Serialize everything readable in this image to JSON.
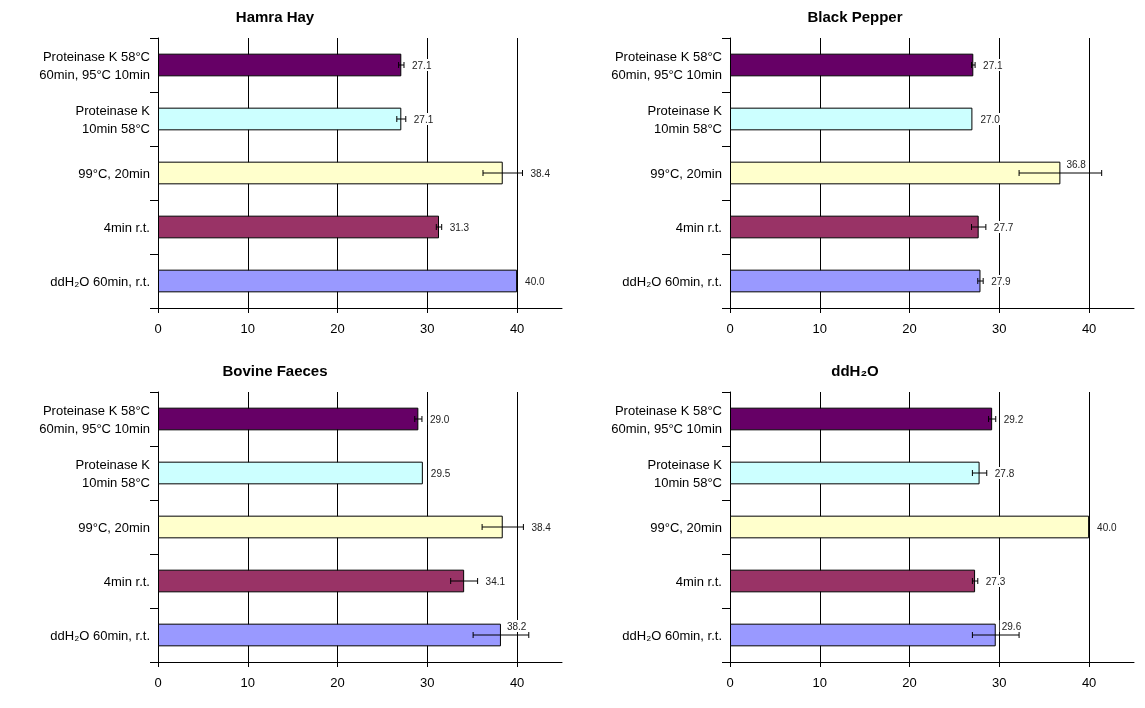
{
  "chart_data": [
    {
      "type": "bar",
      "orientation": "horizontal",
      "title": "Hamra Hay",
      "categories": [
        "Proteinase K 58°C\n60min, 95°C 10min",
        "Proteinase K\n10min 58°C",
        "99°C, 20min",
        "4min r.t.",
        "ddH₂O 60min, r.t."
      ],
      "colors": [
        "#660066",
        "#ccffff",
        "#ffffcc",
        "#993366",
        "#9999ff"
      ],
      "values": [
        27.1,
        27.1,
        38.4,
        31.3,
        40.0
      ],
      "errors": [
        0.3,
        0.5,
        2.2,
        0.3,
        null
      ],
      "value_labels": [
        "27.1",
        "27.1",
        "38.4",
        "31.3",
        "40.0"
      ],
      "xlim": [
        0,
        45
      ],
      "xticks": [
        0,
        10,
        20,
        30,
        40
      ],
      "grid": "x"
    },
    {
      "type": "bar",
      "orientation": "horizontal",
      "title": "Black Pepper",
      "categories": [
        "Proteinase K 58°C\n60min, 95°C 10min",
        "Proteinase K\n10min 58°C",
        "99°C, 20min",
        "4min r.t.",
        "ddH₂O 60min, r.t."
      ],
      "colors": [
        "#660066",
        "#ccffff",
        "#ffffcc",
        "#993366",
        "#9999ff"
      ],
      "values": [
        27.1,
        27.0,
        36.8,
        27.7,
        27.9
      ],
      "errors": [
        0.2,
        null,
        4.6,
        0.8,
        0.3
      ],
      "value_labels": [
        "27.1",
        "27.0",
        "36.8",
        "27.7",
        "27.9"
      ],
      "xlim": [
        0,
        45
      ],
      "xticks": [
        0,
        10,
        20,
        30,
        40
      ],
      "grid": "x"
    },
    {
      "type": "bar",
      "orientation": "horizontal",
      "title": "Bovine Faeces",
      "categories": [
        "Proteinase K 58°C\n60min, 95°C 10min",
        "Proteinase K\n10min 58°C",
        "99°C, 20min",
        "4min r.t.",
        "ddH₂O 60min, r.t."
      ],
      "colors": [
        "#660066",
        "#ccffff",
        "#ffffcc",
        "#993366",
        "#9999ff"
      ],
      "values": [
        29.0,
        29.5,
        38.4,
        34.1,
        38.2
      ],
      "errors": [
        0.4,
        null,
        2.3,
        1.5,
        3.1
      ],
      "value_labels": [
        "29.0",
        "29.5",
        "38.4",
        "34.1",
        "38.2"
      ],
      "xlim": [
        0,
        45
      ],
      "xticks": [
        0,
        10,
        20,
        30,
        40
      ],
      "grid": "x"
    },
    {
      "type": "bar",
      "orientation": "horizontal",
      "title": "ddH₂O",
      "categories": [
        "Proteinase K 58°C\n60min, 95°C 10min",
        "Proteinase K\n10min 58°C",
        "99°C, 20min",
        "4min r.t.",
        "ddH₂O 60min, r.t."
      ],
      "colors": [
        "#660066",
        "#ccffff",
        "#ffffcc",
        "#993366",
        "#9999ff"
      ],
      "values": [
        29.2,
        27.8,
        40.0,
        27.3,
        29.6
      ],
      "errors": [
        0.4,
        0.8,
        null,
        0.3,
        2.6
      ],
      "value_labels": [
        "29.2",
        "27.8",
        "40.0",
        "27.3",
        "29.6"
      ],
      "xlim": [
        0,
        45
      ],
      "xticks": [
        0,
        10,
        20,
        30,
        40
      ],
      "grid": "x"
    }
  ]
}
